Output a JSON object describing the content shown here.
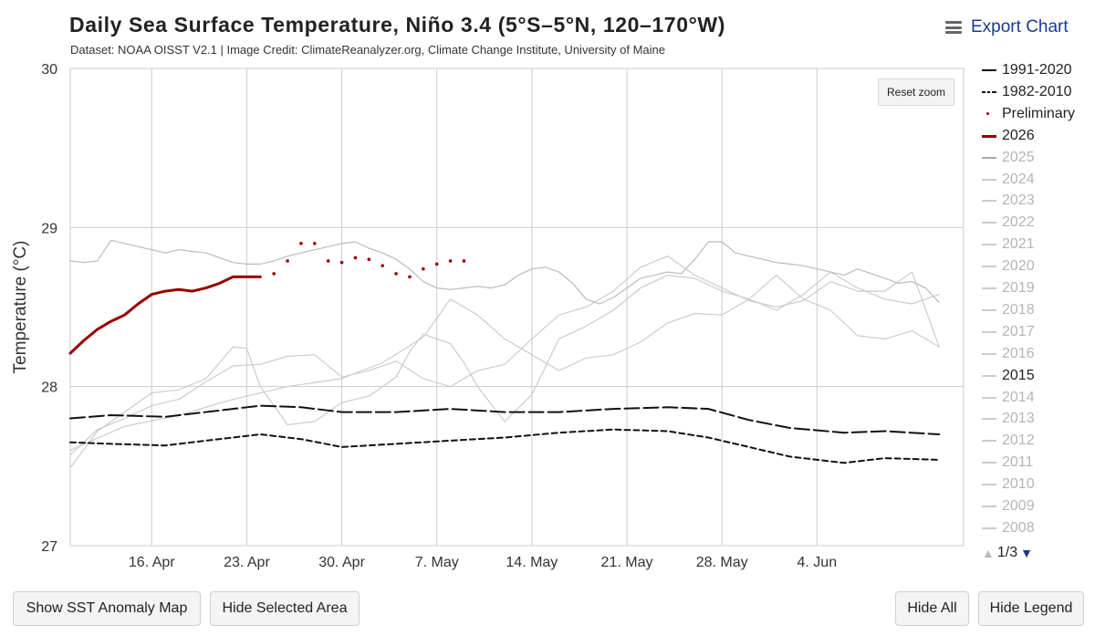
{
  "header": {
    "title": "Daily Sea Surface Temperature, Niño 3.4 (5°S–5°N, 120–170°W)",
    "subtitle": "Dataset: NOAA OISST V2.1 | Image Credit: ClimateReanalyzer.org, Climate Change Institute, University of Maine",
    "export_label": "Export Chart"
  },
  "controls": {
    "reset_zoom": "Reset zoom",
    "pager": "1/3",
    "pager_up_icon": "triangle-up",
    "pager_down_icon": "triangle-down"
  },
  "buttons": {
    "show_anomaly": "Show SST Anomaly Map",
    "hide_selected": "Hide Selected Area",
    "hide_all": "Hide All",
    "hide_legend": "Hide Legend"
  },
  "colors": {
    "current_year": "#990000",
    "climatology": "#111111",
    "past_years": "#bbbbbb",
    "grid": "#cccccc",
    "accent": "#1a3a8f"
  },
  "chart_data": {
    "type": "line",
    "ylabel": "Temperature (°C)",
    "ylim": [
      27,
      30
    ],
    "yticks": [
      27,
      28,
      29,
      30
    ],
    "xrange": [
      "Apr 10",
      "Jun 14"
    ],
    "xticks": [
      {
        "day": 16,
        "label": "16. Apr"
      },
      {
        "day": 23,
        "label": "23. Apr"
      },
      {
        "day": 30,
        "label": "30. Apr"
      },
      {
        "day": 37,
        "label": "7. May"
      },
      {
        "day": 44,
        "label": "14. May"
      },
      {
        "day": 51,
        "label": "21. May"
      },
      {
        "day": 58,
        "label": "28. May"
      },
      {
        "day": 65,
        "label": "4. Jun"
      }
    ],
    "legend_placement": "right",
    "legend": [
      {
        "label": "1991-2020",
        "style": "solid",
        "color": "#111111",
        "active": true
      },
      {
        "label": "1982-2010",
        "style": "dashed",
        "color": "#111111",
        "active": true
      },
      {
        "label": "Preliminary",
        "style": "dot",
        "color": "#990000",
        "active": true
      },
      {
        "label": "2026",
        "style": "thick",
        "color": "#990000",
        "active": true
      },
      {
        "label": "2025",
        "style": "solid",
        "color": "#aaaaaa",
        "active": false
      },
      {
        "label": "2024",
        "style": "solid",
        "color": "#cccccc",
        "active": false
      },
      {
        "label": "2023",
        "style": "solid",
        "color": "#cccccc",
        "active": false
      },
      {
        "label": "2022",
        "style": "solid",
        "color": "#cccccc",
        "active": false
      },
      {
        "label": "2021",
        "style": "solid",
        "color": "#cccccc",
        "active": false
      },
      {
        "label": "2020",
        "style": "solid",
        "color": "#cccccc",
        "active": false
      },
      {
        "label": "2019",
        "style": "solid",
        "color": "#cccccc",
        "active": false
      },
      {
        "label": "2018",
        "style": "solid",
        "color": "#cccccc",
        "active": false
      },
      {
        "label": "2017",
        "style": "solid",
        "color": "#cccccc",
        "active": false
      },
      {
        "label": "2016",
        "style": "solid",
        "color": "#cccccc",
        "active": false
      },
      {
        "label": "2015",
        "style": "solid",
        "color": "#cccccc",
        "active": true
      },
      {
        "label": "2014",
        "style": "solid",
        "color": "#cccccc",
        "active": false
      },
      {
        "label": "2013",
        "style": "solid",
        "color": "#cccccc",
        "active": false
      },
      {
        "label": "2012",
        "style": "solid",
        "color": "#cccccc",
        "active": false
      },
      {
        "label": "2011",
        "style": "solid",
        "color": "#cccccc",
        "active": false
      },
      {
        "label": "2010",
        "style": "solid",
        "color": "#cccccc",
        "active": false
      },
      {
        "label": "2009",
        "style": "solid",
        "color": "#cccccc",
        "active": false
      },
      {
        "label": "2008",
        "style": "solid",
        "color": "#cccccc",
        "active": false
      }
    ],
    "series": [
      {
        "name": "1991-2020",
        "style": "solid",
        "color": "#111111",
        "x": [
          10,
          13,
          17,
          21,
          24,
          27,
          30,
          34,
          38,
          42,
          46,
          50,
          54,
          57,
          60,
          63,
          67,
          70,
          74
        ],
        "y": [
          27.8,
          27.82,
          27.81,
          27.85,
          27.88,
          27.87,
          27.84,
          27.84,
          27.86,
          27.84,
          27.84,
          27.86,
          27.87,
          27.86,
          27.79,
          27.74,
          27.71,
          27.72,
          27.7
        ]
      },
      {
        "name": "1982-2010",
        "style": "dashed",
        "color": "#111111",
        "x": [
          10,
          13,
          17,
          20,
          24,
          27,
          30,
          34,
          38,
          42,
          46,
          50,
          54,
          57,
          60,
          63,
          67,
          70,
          74
        ],
        "y": [
          27.65,
          27.64,
          27.63,
          27.66,
          27.7,
          27.67,
          27.62,
          27.64,
          27.66,
          27.68,
          27.71,
          27.73,
          27.72,
          27.68,
          27.62,
          27.56,
          27.52,
          27.55,
          27.54
        ]
      },
      {
        "name": "Preliminary",
        "style": "dot",
        "color": "#990000",
        "x": [
          25,
          26,
          27,
          28,
          29,
          30,
          31,
          32,
          33,
          34,
          35,
          36,
          37,
          38,
          39
        ],
        "y": [
          28.71,
          28.79,
          28.9,
          28.9,
          28.79,
          28.78,
          28.81,
          28.8,
          28.76,
          28.71,
          28.69,
          28.74,
          28.77,
          28.79,
          28.79
        ]
      },
      {
        "name": "2026",
        "style": "thick",
        "color": "#990000",
        "x": [
          10,
          11,
          12,
          13,
          14,
          15,
          16,
          17,
          18,
          19,
          20,
          21,
          22,
          23,
          24
        ],
        "y": [
          28.21,
          28.29,
          28.36,
          28.41,
          28.45,
          28.52,
          28.58,
          28.6,
          28.61,
          28.6,
          28.62,
          28.65,
          28.69,
          28.69,
          28.69
        ]
      },
      {
        "name": "2015",
        "style": "solid",
        "color": "#bbbbbb",
        "x": [
          10,
          11,
          12,
          13,
          14,
          15,
          16,
          17,
          18,
          19,
          20,
          21,
          22,
          23,
          24,
          25,
          26,
          27,
          28,
          29,
          30,
          31,
          32,
          33,
          34,
          35,
          36,
          37,
          38,
          39,
          40,
          41,
          42,
          43,
          44,
          45,
          46,
          47,
          48,
          49,
          50,
          51,
          52,
          53,
          54,
          55,
          56,
          57,
          58,
          59,
          60,
          61,
          62,
          63,
          64,
          65,
          66,
          67,
          68,
          69,
          70,
          71,
          72,
          73,
          74
        ],
        "y": [
          28.79,
          28.78,
          28.79,
          28.92,
          28.9,
          28.88,
          28.86,
          28.84,
          28.86,
          28.85,
          28.84,
          28.81,
          28.78,
          28.77,
          28.77,
          28.79,
          28.82,
          28.84,
          28.86,
          28.88,
          28.9,
          28.91,
          28.87,
          28.84,
          28.8,
          28.74,
          28.66,
          28.62,
          28.61,
          28.62,
          28.63,
          28.62,
          28.64,
          28.7,
          28.74,
          28.75,
          28.72,
          28.65,
          28.55,
          28.52,
          28.56,
          28.62,
          28.68,
          28.7,
          28.72,
          28.71,
          28.8,
          28.91,
          28.91,
          28.84,
          28.82,
          28.8,
          28.78,
          28.77,
          28.76,
          28.74,
          28.72,
          28.7,
          28.74,
          28.71,
          28.68,
          28.65,
          28.66,
          28.62,
          28.53
        ]
      },
      {
        "name": "",
        "style": "solid",
        "color": "#cccccc",
        "x": [
          10,
          12,
          14,
          16,
          18,
          20,
          22,
          23,
          24,
          26,
          28,
          30,
          32,
          34,
          35,
          36,
          38,
          39,
          40,
          42,
          44,
          46,
          48,
          50,
          52,
          54,
          56,
          58,
          60,
          62,
          64,
          66,
          68,
          70,
          72,
          74
        ],
        "y": [
          27.49,
          27.72,
          27.84,
          27.96,
          27.98,
          28.05,
          28.25,
          28.24,
          28.0,
          27.76,
          27.78,
          27.9,
          27.94,
          28.06,
          28.22,
          28.33,
          28.27,
          28.15,
          28.0,
          27.78,
          27.95,
          28.3,
          28.38,
          28.48,
          28.62,
          28.7,
          28.68,
          28.6,
          28.55,
          28.48,
          28.58,
          28.72,
          28.62,
          28.55,
          28.52,
          28.58
        ]
      },
      {
        "name": "",
        "style": "solid",
        "color": "#cccccc",
        "x": [
          10,
          12,
          14,
          16,
          18,
          20,
          22,
          24,
          26,
          28,
          30,
          32,
          34,
          36,
          38,
          40,
          42,
          44,
          46,
          48,
          50,
          52,
          54,
          56,
          58,
          60,
          62,
          64,
          66,
          68,
          70,
          72,
          74
        ],
        "y": [
          27.57,
          27.73,
          27.8,
          27.88,
          27.92,
          28.03,
          28.13,
          28.14,
          28.19,
          28.2,
          28.06,
          28.1,
          28.16,
          28.05,
          28.0,
          28.1,
          28.14,
          28.3,
          28.45,
          28.5,
          28.6,
          28.75,
          28.82,
          28.7,
          28.62,
          28.54,
          28.5,
          28.54,
          28.66,
          28.6,
          28.6,
          28.72,
          28.25
        ]
      },
      {
        "name": "",
        "style": "solid",
        "color": "#cccccc",
        "x": [
          10,
          14,
          18,
          22,
          26,
          30,
          33,
          36,
          38,
          40,
          42,
          44,
          46,
          48,
          50,
          52,
          54,
          56,
          58,
          60,
          62,
          64,
          66,
          68,
          70,
          72,
          74
        ],
        "y": [
          27.6,
          27.75,
          27.82,
          27.92,
          28.0,
          28.05,
          28.15,
          28.31,
          28.55,
          28.45,
          28.3,
          28.2,
          28.1,
          28.18,
          28.2,
          28.28,
          28.4,
          28.46,
          28.45,
          28.55,
          28.7,
          28.55,
          28.48,
          28.32,
          28.3,
          28.35,
          28.25
        ]
      }
    ]
  }
}
